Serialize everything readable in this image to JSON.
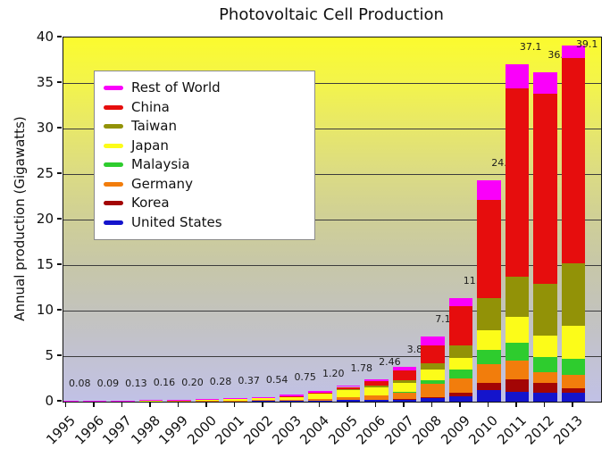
{
  "title": "Photovoltaic Cell Production",
  "y_axis": {
    "label": "Annual production (Gigawatts)",
    "ticks": [
      0,
      5,
      10,
      15,
      20,
      25,
      30,
      35,
      40
    ]
  },
  "x_axis": {
    "ticks": [
      "1995",
      "1996",
      "1997",
      "1998",
      "1999",
      "2000",
      "2001",
      "2002",
      "2003",
      "2004",
      "2005",
      "2006",
      "2007",
      "2008",
      "2009",
      "2010",
      "2011",
      "2012",
      "2013"
    ]
  },
  "legend": {
    "items": [
      {
        "label": "Rest of World",
        "color": "#fa00fa"
      },
      {
        "label": "China",
        "color": "#e60d0d"
      },
      {
        "label": "Taiwan",
        "color": "#929207"
      },
      {
        "label": "Japan",
        "color": "#fcfc19"
      },
      {
        "label": "Malaysia",
        "color": "#2ecc2e"
      },
      {
        "label": "Germany",
        "color": "#f27d0c"
      },
      {
        "label": "Korea",
        "color": "#a30505"
      },
      {
        "label": "United States",
        "color": "#1414cc"
      }
    ]
  },
  "chart_data": {
    "type": "bar",
    "stacked": true,
    "title": "Photovoltaic Cell Production",
    "xlabel": "",
    "ylabel": "Annual production (Gigawatts)",
    "ylim": [
      0,
      40
    ],
    "grid": true,
    "legend_position": "upper-left",
    "background_gradient_top": "#fbfb2e",
    "background_gradient_bottom": "#c1c1e6",
    "categories": [
      1995,
      1996,
      1997,
      1998,
      1999,
      2000,
      2001,
      2002,
      2003,
      2004,
      2005,
      2006,
      2007,
      2008,
      2009,
      2010,
      2011,
      2012,
      2013
    ],
    "total_labels": [
      "0.08",
      "0.09",
      "0.13",
      "0.16",
      "0.20",
      "0.28",
      "0.37",
      "0.54",
      "0.75",
      "1.20",
      "1.78",
      "2.46",
      "3.81",
      "7.13",
      "11.4",
      "24.3",
      "37.1",
      "36.2",
      "39.1"
    ],
    "totals": [
      0.08,
      0.09,
      0.13,
      0.16,
      0.2,
      0.28,
      0.37,
      0.54,
      0.75,
      1.2,
      1.78,
      2.46,
      3.81,
      7.13,
      11.4,
      24.3,
      37.1,
      36.2,
      39.1
    ],
    "series": [
      {
        "name": "United States",
        "color": "#1414cc",
        "values": [
          0.035,
          0.04,
          0.05,
          0.05,
          0.06,
          0.075,
          0.1,
          0.12,
          0.1,
          0.14,
          0.15,
          0.18,
          0.27,
          0.4,
          0.6,
          1.25,
          1.1,
          1.0,
          1.0
        ]
      },
      {
        "name": "Korea",
        "color": "#a30505",
        "values": [
          0,
          0,
          0,
          0,
          0,
          0,
          0,
          0,
          0,
          0,
          0,
          0,
          0.02,
          0.1,
          0.35,
          0.85,
          1.35,
          1.05,
          0.45
        ]
      },
      {
        "name": "Germany",
        "color": "#f27d0c",
        "values": [
          0.005,
          0.01,
          0.01,
          0.015,
          0.02,
          0.025,
          0.03,
          0.055,
          0.1,
          0.2,
          0.35,
          0.51,
          0.77,
          1.46,
          1.6,
          2.0,
          2.1,
          1.2,
          1.5
        ]
      },
      {
        "name": "Malaysia",
        "color": "#2ecc2e",
        "values": [
          0,
          0,
          0,
          0,
          0,
          0,
          0,
          0,
          0,
          0,
          0,
          0,
          0.05,
          0.35,
          0.95,
          1.55,
          1.9,
          1.65,
          1.8
        ]
      },
      {
        "name": "Japan",
        "color": "#fcfc19",
        "values": [
          0.02,
          0.02,
          0.035,
          0.05,
          0.08,
          0.13,
          0.17,
          0.25,
          0.36,
          0.6,
          0.83,
          0.92,
          0.92,
          1.23,
          1.3,
          2.2,
          2.9,
          2.4,
          3.55
        ]
      },
      {
        "name": "Taiwan",
        "color": "#929207",
        "values": [
          0,
          0,
          0,
          0,
          0,
          0,
          0,
          0,
          0.01,
          0.02,
          0.09,
          0.17,
          0.37,
          0.66,
          1.35,
          3.5,
          4.4,
          5.6,
          6.9
        ]
      },
      {
        "name": "China",
        "color": "#e60d0d",
        "values": [
          0,
          0,
          0,
          0,
          0,
          0,
          0,
          0.005,
          0.02,
          0.06,
          0.2,
          0.44,
          1.01,
          1.95,
          4.3,
          10.8,
          20.7,
          20.9,
          22.5
        ]
      },
      {
        "name": "Rest of World",
        "color": "#fa00fa",
        "values": [
          0.02,
          0.02,
          0.035,
          0.045,
          0.04,
          0.05,
          0.07,
          0.11,
          0.16,
          0.18,
          0.16,
          0.24,
          0.4,
          0.98,
          0.95,
          2.15,
          2.65,
          2.4,
          1.4
        ]
      }
    ]
  }
}
